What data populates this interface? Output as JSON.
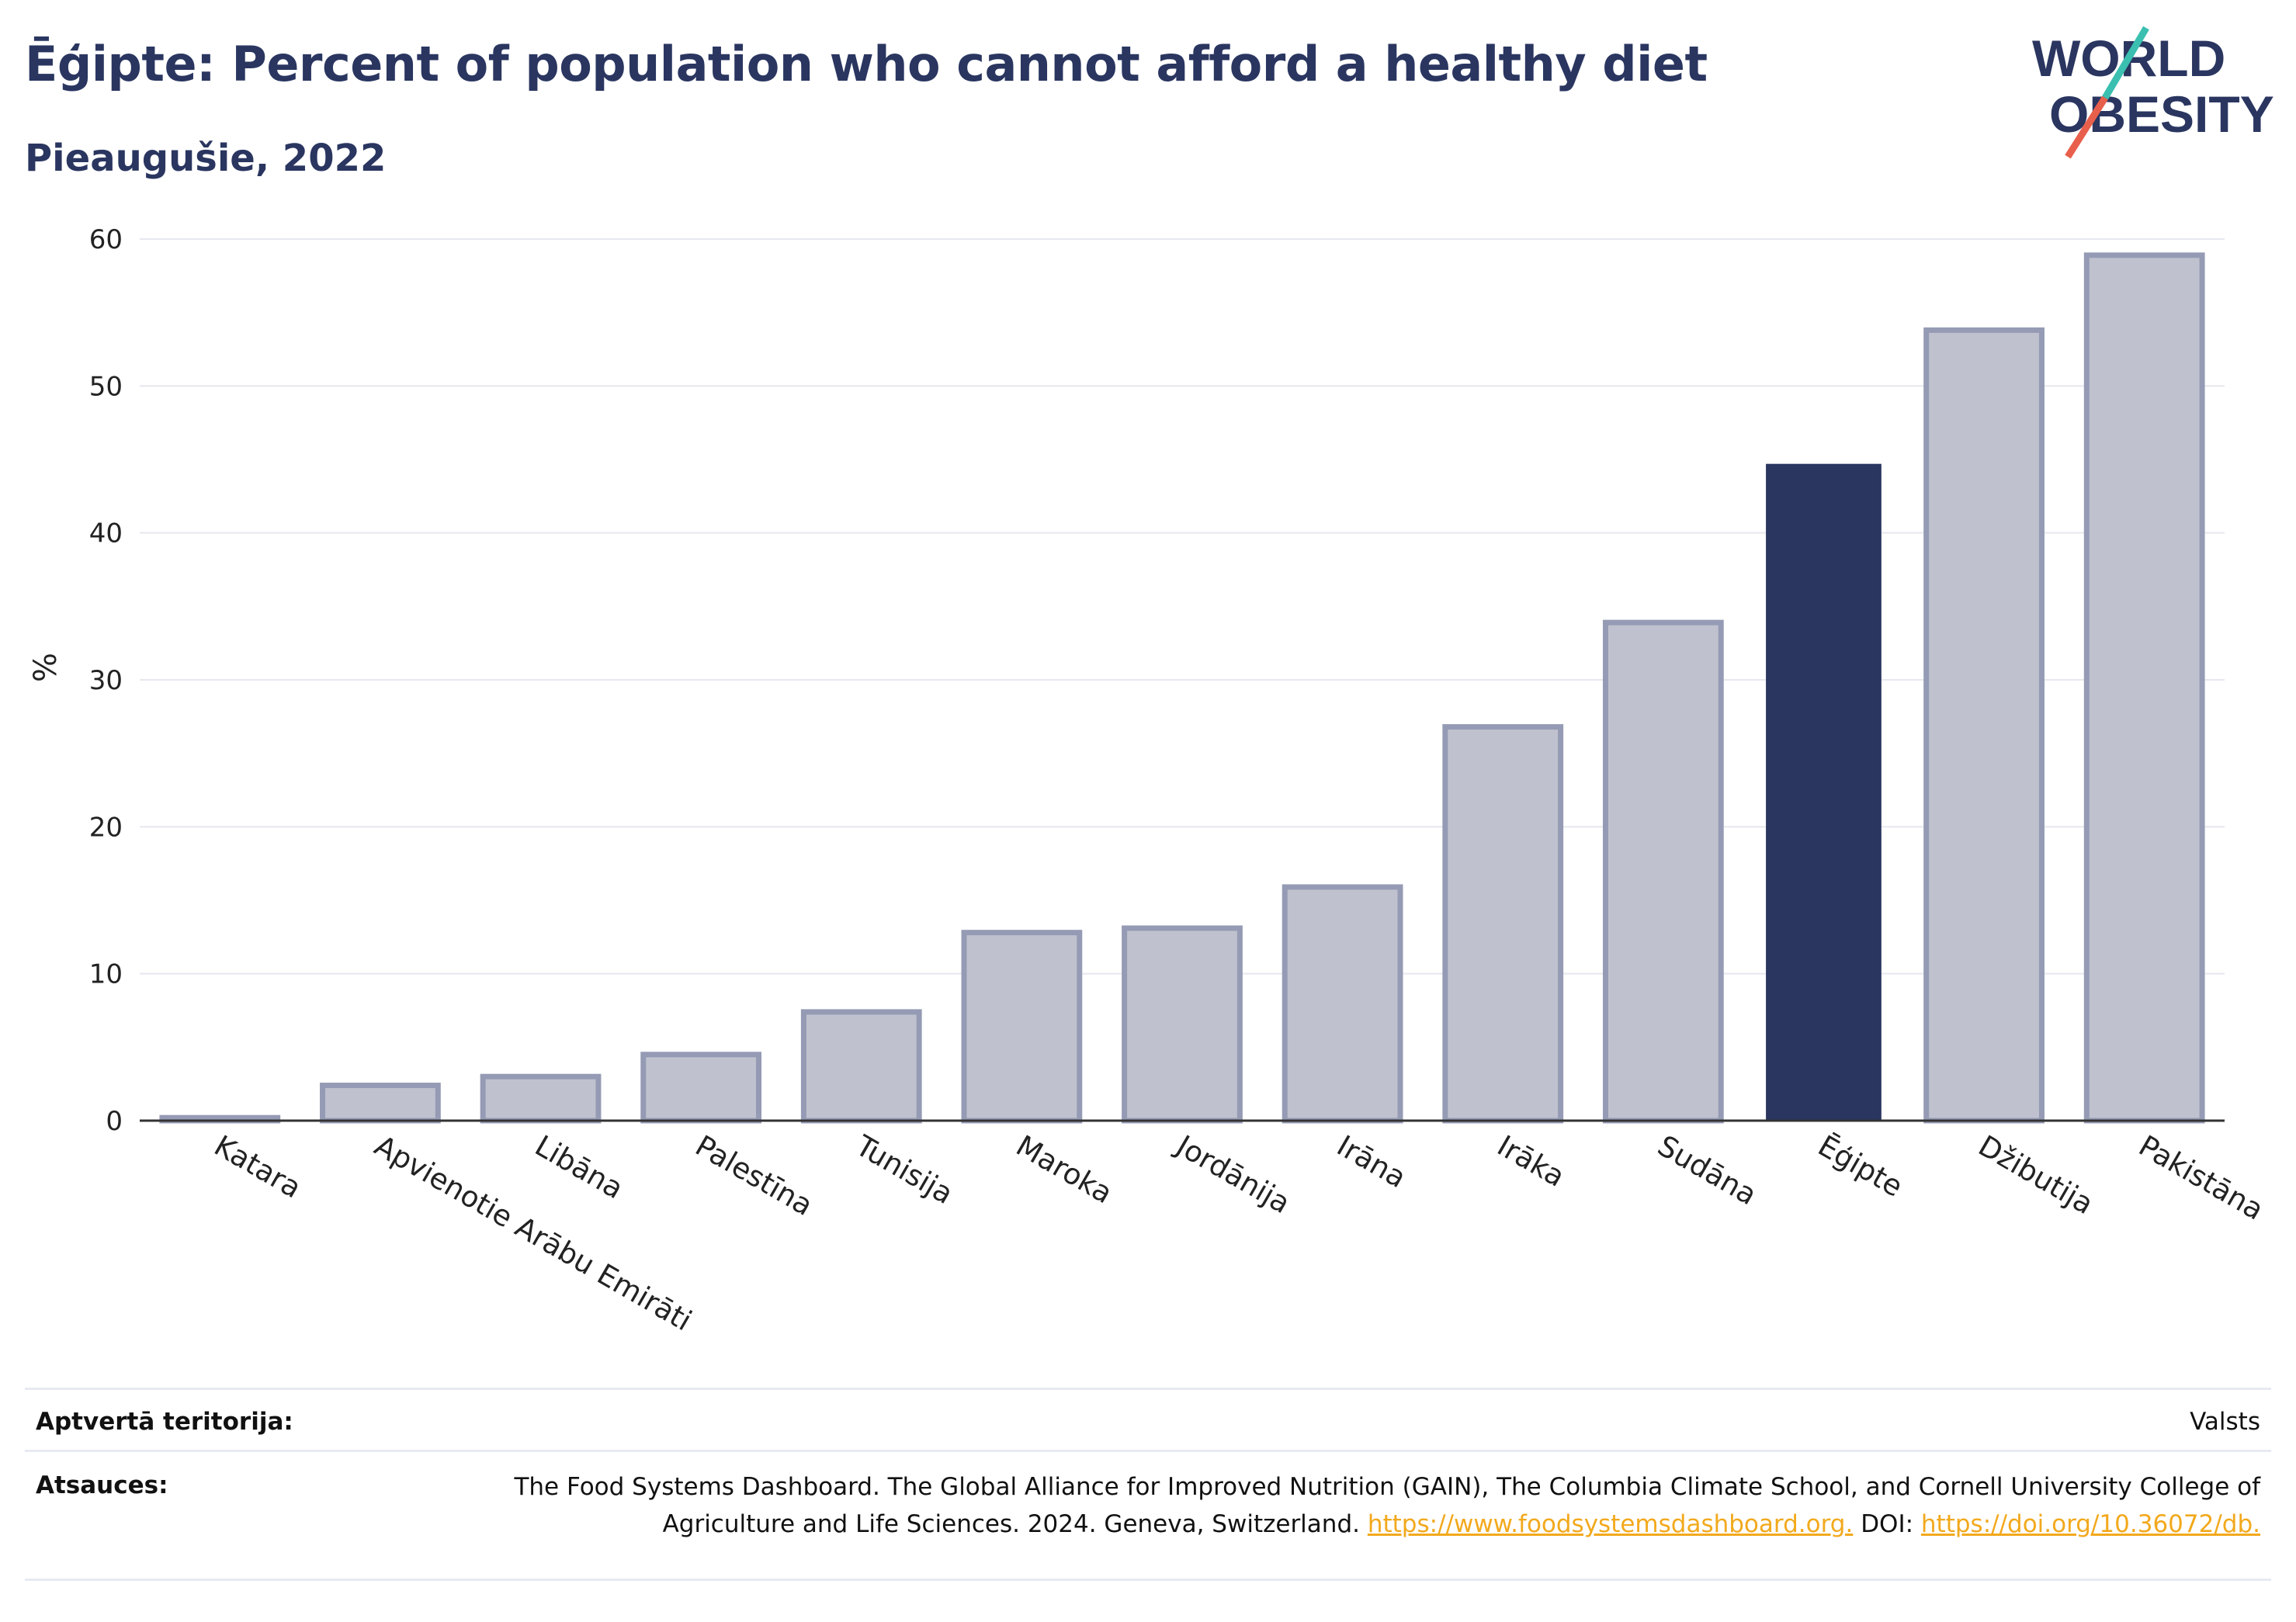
{
  "header": {
    "title": "Ēģipte: Percent of population who cannot afford a healthy diet",
    "subtitle": "Pieaugušie, 2022"
  },
  "logo": {
    "line1": "WORLD",
    "line2": "OBESITY",
    "colors": {
      "text": "#2a3660",
      "slash_teal": "#3bbfb0",
      "slash_red": "#e8604c"
    }
  },
  "chart_data": {
    "type": "bar",
    "ylabel": "%",
    "ylim": [
      0,
      60
    ],
    "yticks": [
      "0",
      "10",
      "20",
      "30",
      "40",
      "50",
      "60"
    ],
    "grid": true,
    "categories": [
      "Katara",
      "Apvienotie Arābu Emirāti",
      "Libāna",
      "Palestīna",
      "Tunisija",
      "Maroka",
      "Jordānija",
      "Irāna",
      "Irāka",
      "Sudāna",
      "Ēģipte",
      "Džibutija",
      "Pakistāna"
    ],
    "values": [
      0.2,
      2.4,
      3.0,
      4.5,
      7.4,
      12.8,
      13.1,
      15.9,
      26.8,
      33.9,
      44.7,
      53.8,
      58.9
    ],
    "highlight": "Ēģipte",
    "colors": {
      "bar": "#bfc2ce",
      "bar_border": "#959bb4",
      "highlight": "#2a3660"
    }
  },
  "footer": {
    "coverage_label": "Aptvertā teritorija:",
    "coverage_value": "Valsts",
    "sources_label": "Atsauces:",
    "sources_text_1": "The Food Systems Dashboard. The Global Alliance for Improved Nutrition (GAIN), The Columbia Climate School, and Cornell University College of Agriculture and Life Sciences. 2024. Geneva, Switzerland.",
    "sources_link_1": "https://www.foodsystemsdashboard.org.",
    "sources_text_2": "DOI:",
    "sources_link_2": "https://doi.org/10.36072/db."
  }
}
